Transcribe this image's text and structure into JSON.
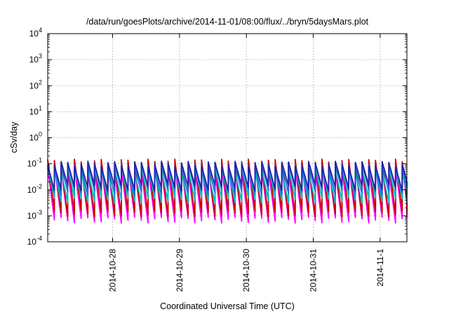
{
  "chart_data": {
    "type": "line",
    "title": "/data/run/goesPlots/archive/2014-11-01/08:00/flux/../bryn/5daysMars.plot",
    "xlabel": "Coordinated Universal Time (UTC)",
    "ylabel": "cSv/day",
    "yscale": "log",
    "ylim": [
      0.0001,
      10000
    ],
    "y_ticks": [
      {
        "value": 0.0001,
        "base": "10",
        "exp": "-4"
      },
      {
        "value": 0.001,
        "base": "10",
        "exp": "-3"
      },
      {
        "value": 0.01,
        "base": "10",
        "exp": "-2"
      },
      {
        "value": 0.1,
        "base": "10",
        "exp": "-1"
      },
      {
        "value": 1,
        "base": "10",
        "exp": "0"
      },
      {
        "value": 10,
        "base": "10",
        "exp": "1"
      },
      {
        "value": 100,
        "base": "10",
        "exp": "2"
      },
      {
        "value": 1000,
        "base": "10",
        "exp": "3"
      },
      {
        "value": 10000,
        "base": "10",
        "exp": "4"
      }
    ],
    "xlim_days": [
      -0.97,
      4.4
    ],
    "x_ticks": [
      {
        "label": "2014-10-28",
        "day": 0
      },
      {
        "label": "2014-10-29",
        "day": 1
      },
      {
        "label": "2014-10-30",
        "day": 2
      },
      {
        "label": "2014-10-31",
        "day": 3
      },
      {
        "label": "2014-11-1",
        "day": 4
      }
    ],
    "grid": true,
    "legend": "none",
    "sawtooth": {
      "period_days": 0.1,
      "start_day": -0.97,
      "end_day": 4.4,
      "approx_peak": 0.1,
      "approx_trough": 0.001
    },
    "series": [
      {
        "color": "#ff00ff",
        "peak": 0.07,
        "trough": 0.0007
      },
      {
        "color": "#cc0000",
        "peak": 0.12,
        "trough": 0.0012
      },
      {
        "color": "#00bbbb",
        "peak": 0.065,
        "trough": 0.004
      },
      {
        "color": "#1a6fd9",
        "peak": 0.09,
        "trough": 0.008
      },
      {
        "color": "#2222aa",
        "peak": 0.1,
        "trough": 0.012
      }
    ]
  }
}
